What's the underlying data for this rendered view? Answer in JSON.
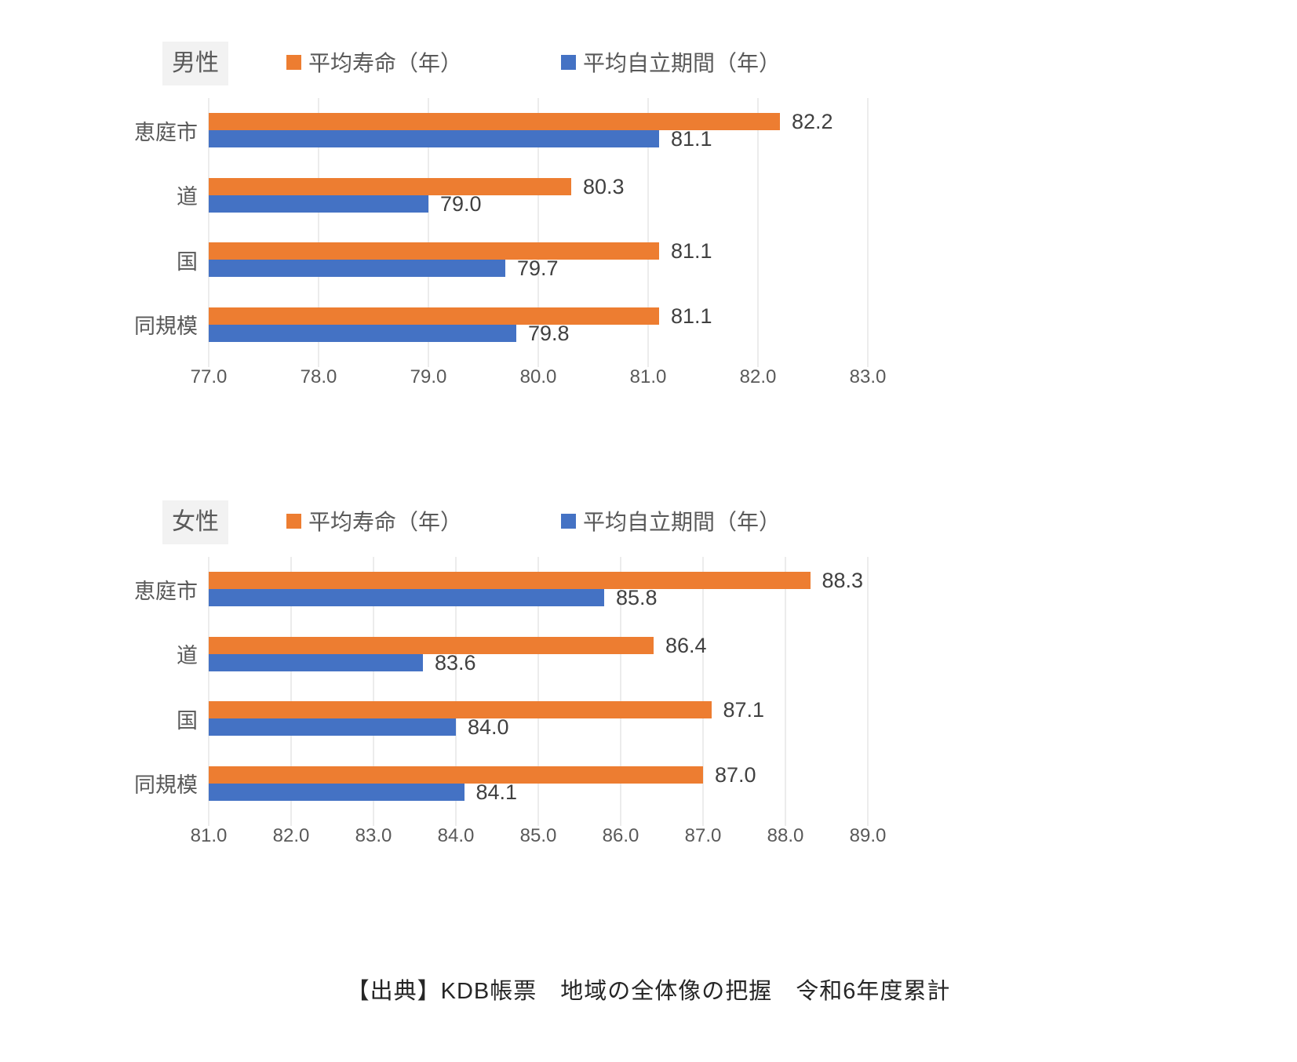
{
  "page": {
    "footer_source": "【出典】KDB帳票　地域の全体像の把握　令和6年度累計"
  },
  "colors": {
    "life_expectancy_series": "#ED7D31",
    "independent_period_series": "#4472C4",
    "gridline": "#D9D9D9",
    "axis_text": "#595959",
    "data_label_text": "#404040",
    "title_background": "#F2F2F2"
  },
  "legend": {
    "life_expectancy": "平均寿命（年）",
    "independent_period": "平均自立期間（年）"
  },
  "chart_data": [
    {
      "type": "bar",
      "orientation": "horizontal",
      "title": "男性",
      "categories": [
        "恵庭市",
        "道",
        "国",
        "同規模"
      ],
      "series": [
        {
          "name": "平均寿命（年）",
          "color": "#ED7D31",
          "values": [
            82.2,
            80.3,
            81.1,
            81.1
          ]
        },
        {
          "name": "平均自立期間（年）",
          "color": "#4472C4",
          "values": [
            81.1,
            79.0,
            79.7,
            79.8
          ]
        }
      ],
      "xlim": [
        77.0,
        83.0
      ],
      "xticks": [
        "77.0",
        "78.0",
        "79.0",
        "80.0",
        "81.0",
        "82.0",
        "83.0"
      ],
      "grid": true,
      "legend_position": "top",
      "data_labels": true
    },
    {
      "type": "bar",
      "orientation": "horizontal",
      "title": "女性",
      "categories": [
        "恵庭市",
        "道",
        "国",
        "同規模"
      ],
      "series": [
        {
          "name": "平均寿命（年）",
          "color": "#ED7D31",
          "values": [
            88.3,
            86.4,
            87.1,
            87.0
          ]
        },
        {
          "name": "平均自立期間（年）",
          "color": "#4472C4",
          "values": [
            85.8,
            83.6,
            84.0,
            84.1
          ]
        }
      ],
      "xlim": [
        81.0,
        89.0
      ],
      "xticks": [
        "81.0",
        "82.0",
        "83.0",
        "84.0",
        "85.0",
        "86.0",
        "87.0",
        "88.0",
        "89.0"
      ],
      "grid": true,
      "legend_position": "top",
      "data_labels": true
    }
  ]
}
